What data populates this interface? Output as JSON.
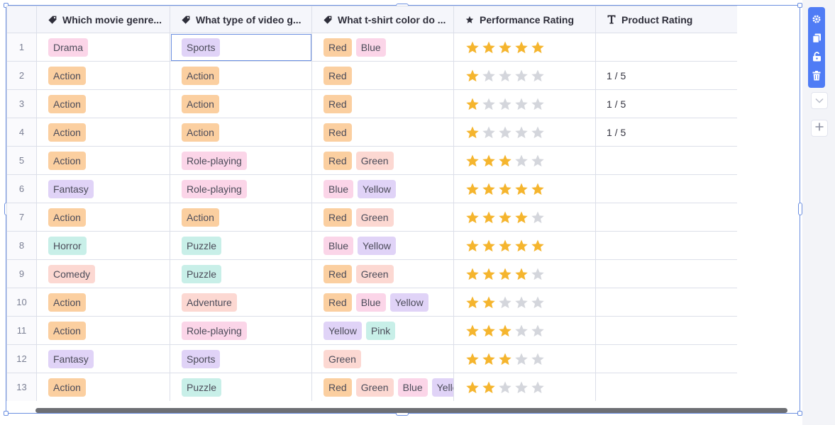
{
  "columns": [
    {
      "icon": "tag-icon",
      "label": "Which movie genre..."
    },
    {
      "icon": "tag-icon",
      "label": "What type of video g..."
    },
    {
      "icon": "tag-icon",
      "label": "What t-shirt color do ..."
    },
    {
      "icon": "star-icon",
      "label": "Performance Rating"
    },
    {
      "icon": "text-icon",
      "label": "Product Rating"
    }
  ],
  "tag_colors": {
    "Drama": "#fbd5e8",
    "Action": "#fbcfa0",
    "Fantasy": "#e0d3f7",
    "Horror": "#c8efe8",
    "Comedy": "#fcd8d2",
    "Sports": "#e0d3f7",
    "Role-playing": "#fbd5e8",
    "Puzzle": "#c8efe8",
    "Adventure": "#fcd8d2",
    "Red": "#fbcfa0",
    "Blue": "#fbd5e8",
    "Green": "#fcd8d2",
    "Yellow": "#e0d3f7",
    "Pink": "#c8efe8"
  },
  "star_colors": {
    "filled": "#f5b52e",
    "empty": "#d4d6dc"
  },
  "rows": [
    {
      "index": "1",
      "genre": [
        "Drama"
      ],
      "game": [
        "Sports"
      ],
      "color": [
        "Red",
        "Blue"
      ],
      "performance": 5,
      "product": ""
    },
    {
      "index": "2",
      "genre": [
        "Action"
      ],
      "game": [
        "Action"
      ],
      "color": [
        "Red"
      ],
      "performance": 1,
      "product": "1 / 5"
    },
    {
      "index": "3",
      "genre": [
        "Action"
      ],
      "game": [
        "Action"
      ],
      "color": [
        "Red"
      ],
      "performance": 1,
      "product": "1 / 5"
    },
    {
      "index": "4",
      "genre": [
        "Action"
      ],
      "game": [
        "Action"
      ],
      "color": [
        "Red"
      ],
      "performance": 1,
      "product": "1 / 5"
    },
    {
      "index": "5",
      "genre": [
        "Action"
      ],
      "game": [
        "Role-playing"
      ],
      "color": [
        "Red",
        "Green"
      ],
      "performance": 3,
      "product": ""
    },
    {
      "index": "6",
      "genre": [
        "Fantasy"
      ],
      "game": [
        "Role-playing"
      ],
      "color": [
        "Blue",
        "Yellow"
      ],
      "performance": 5,
      "product": ""
    },
    {
      "index": "7",
      "genre": [
        "Action"
      ],
      "game": [
        "Action"
      ],
      "color": [
        "Red",
        "Green"
      ],
      "performance": 4,
      "product": ""
    },
    {
      "index": "8",
      "genre": [
        "Horror"
      ],
      "game": [
        "Puzzle"
      ],
      "color": [
        "Blue",
        "Yellow"
      ],
      "performance": 5,
      "product": ""
    },
    {
      "index": "9",
      "genre": [
        "Comedy"
      ],
      "game": [
        "Puzzle"
      ],
      "color": [
        "Red",
        "Green"
      ],
      "performance": 4,
      "product": ""
    },
    {
      "index": "10",
      "genre": [
        "Action"
      ],
      "game": [
        "Adventure"
      ],
      "color": [
        "Red",
        "Blue",
        "Yellow"
      ],
      "performance": 2,
      "product": ""
    },
    {
      "index": "11",
      "genre": [
        "Action"
      ],
      "game": [
        "Role-playing"
      ],
      "color": [
        "Yellow",
        "Pink"
      ],
      "performance": 3,
      "product": ""
    },
    {
      "index": "12",
      "genre": [
        "Fantasy"
      ],
      "game": [
        "Sports"
      ],
      "color": [
        "Green"
      ],
      "performance": 3,
      "product": ""
    },
    {
      "index": "13",
      "genre": [
        "Action"
      ],
      "game": [
        "Puzzle"
      ],
      "color": [
        "Red",
        "Green",
        "Blue",
        "Yellow"
      ],
      "performance": 2,
      "product": ""
    }
  ],
  "toolbar": [
    "settings-gear-icon",
    "duplicate-icon",
    "unlock-icon",
    "trash-icon"
  ],
  "side_buttons": [
    "chevron-down-icon",
    "plus-icon"
  ]
}
